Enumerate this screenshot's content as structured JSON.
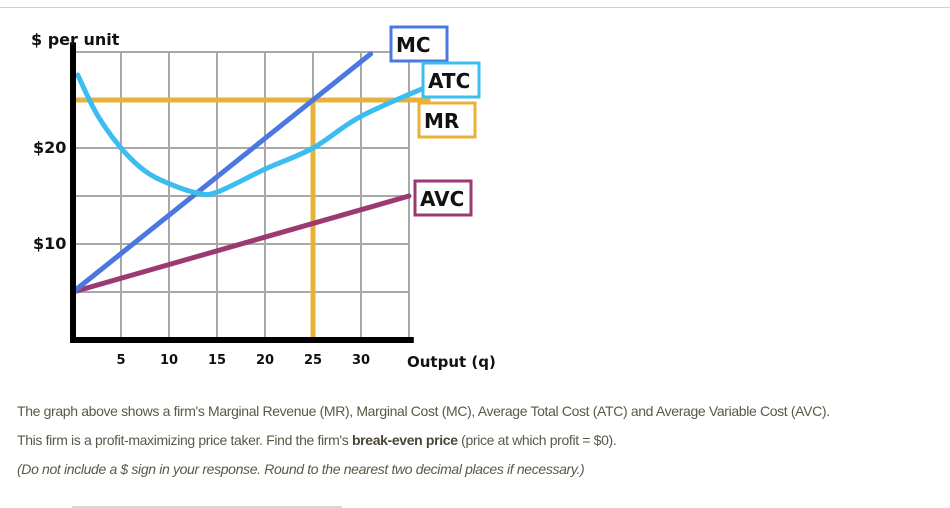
{
  "chart_data": {
    "type": "line",
    "ylabel": "$ per unit",
    "xlabel": "Output (q)",
    "xlim": [
      0,
      35
    ],
    "ylim": [
      0,
      30
    ],
    "grid": true,
    "x_ticks": [
      5,
      10,
      15,
      20,
      25,
      30
    ],
    "x_tick_labels": [
      "5",
      "10",
      "15",
      "20",
      "25",
      "30"
    ],
    "y_ticks": [
      10,
      20
    ],
    "y_tick_labels": [
      "$10",
      "$20"
    ],
    "series": [
      {
        "name": "MC",
        "color": "#4a78e0",
        "points": [
          [
            0,
            5
          ],
          [
            31,
            29.8
          ]
        ]
      },
      {
        "name": "ATC",
        "color": "#3bbdf0",
        "points": [
          [
            0.5,
            27.6
          ],
          [
            2.5,
            23.5
          ],
          [
            5,
            20
          ],
          [
            7.5,
            17.6
          ],
          [
            10,
            16.3
          ],
          [
            13,
            15.3
          ],
          [
            15,
            15.4
          ],
          [
            20,
            17.8
          ],
          [
            25,
            20
          ],
          [
            30,
            23.3
          ],
          [
            37.4,
            26.6
          ]
        ]
      },
      {
        "name": "MR",
        "color": "#e8b23a",
        "points": [
          [
            0,
            25
          ],
          [
            37,
            25
          ]
        ]
      },
      {
        "name": "AVC",
        "color": "#9b3a72",
        "points": [
          [
            0,
            5
          ],
          [
            35,
            15
          ]
        ]
      }
    ],
    "annotations": [
      {
        "type": "vertical-line",
        "x": 25,
        "from": 0,
        "to": 25,
        "color": "#e8b23a"
      }
    ]
  },
  "question": {
    "line1": "The graph above shows a firm's Marginal Revenue (MR), Marginal Cost (MC), Average Total Cost (ATC) and Average Variable Cost (AVC).",
    "line2_pre": "This firm is a profit-maximizing price taker. Find the firm's ",
    "line2_bold": "break-even price",
    "line2_post": " (price at which profit = $0).",
    "line3": "(Do not include a $ sign in your response. Round to the nearest two decimal places if necessary.)"
  }
}
